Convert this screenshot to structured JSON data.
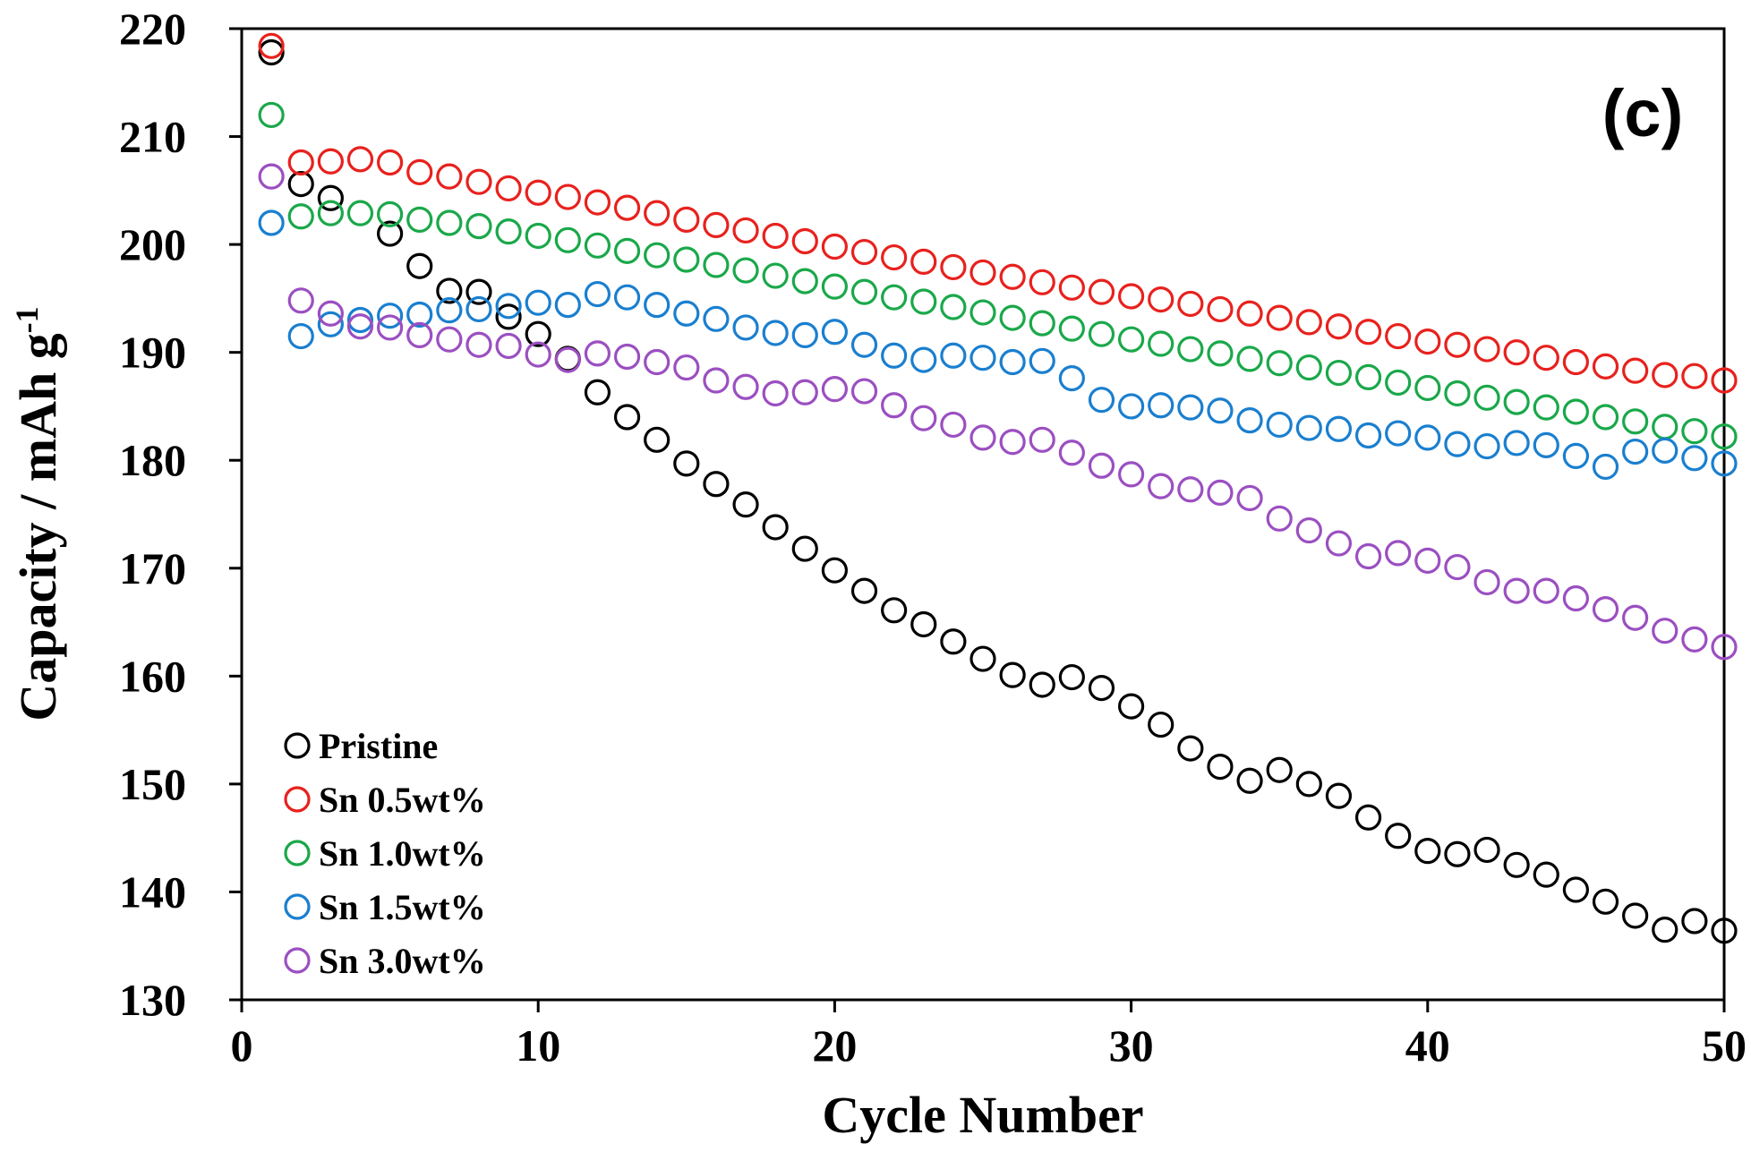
{
  "chart_data": {
    "type": "scatter",
    "panel_label": "(c)",
    "xlabel": "Cycle Number",
    "ylabel": "Capacity / mAh g",
    "ylabel_superscript": "-1",
    "xlim": [
      0,
      50
    ],
    "ylim": [
      130,
      220
    ],
    "xticks": [
      0,
      10,
      20,
      30,
      40,
      50
    ],
    "yticks": [
      130,
      140,
      150,
      160,
      170,
      180,
      190,
      200,
      210,
      220
    ],
    "grid": false,
    "legend_position": "bottom-left",
    "marker": "open-circle",
    "x": [
      1,
      2,
      3,
      4,
      5,
      6,
      7,
      8,
      9,
      10,
      11,
      12,
      13,
      14,
      15,
      16,
      17,
      18,
      19,
      20,
      21,
      22,
      23,
      24,
      25,
      26,
      27,
      28,
      29,
      30,
      31,
      32,
      33,
      34,
      35,
      36,
      37,
      38,
      39,
      40,
      41,
      42,
      43,
      44,
      45,
      46,
      47,
      48,
      49,
      50
    ],
    "series": [
      {
        "name": "Pristine",
        "color": "#000000",
        "values": [
          217.8,
          205.6,
          204.3,
          null,
          201.0,
          198.0,
          195.7,
          195.6,
          193.3,
          191.7,
          189.4,
          186.3,
          184.0,
          181.9,
          179.7,
          177.8,
          175.9,
          173.8,
          171.8,
          169.8,
          167.9,
          166.1,
          164.8,
          163.2,
          161.6,
          160.1,
          159.2,
          159.9,
          158.9,
          157.2,
          155.5,
          153.3,
          151.6,
          150.3,
          151.3,
          150.0,
          148.9,
          146.9,
          145.2,
          143.8,
          143.5,
          143.9,
          142.5,
          141.6,
          140.2,
          139.1,
          137.8,
          136.5,
          137.3,
          136.4
        ]
      },
      {
        "name": "Sn 0.5wt%",
        "color": "#e8211d",
        "values": [
          218.4,
          207.6,
          207.7,
          207.9,
          207.6,
          206.7,
          206.3,
          205.8,
          205.2,
          204.8,
          204.4,
          203.9,
          203.4,
          202.9,
          202.3,
          201.8,
          201.3,
          200.8,
          200.3,
          199.8,
          199.3,
          198.8,
          198.4,
          197.9,
          197.4,
          197.0,
          196.5,
          196.0,
          195.6,
          195.2,
          194.9,
          194.5,
          194.0,
          193.6,
          193.2,
          192.8,
          192.4,
          191.9,
          191.5,
          191.0,
          190.7,
          190.3,
          190.0,
          189.5,
          189.1,
          188.7,
          188.3,
          187.9,
          187.8,
          187.4
        ]
      },
      {
        "name": "Sn 1.0wt%",
        "color": "#1aa84a",
        "values": [
          212.0,
          202.6,
          202.9,
          202.9,
          202.8,
          202.3,
          202.0,
          201.7,
          201.2,
          200.8,
          200.4,
          199.9,
          199.4,
          199.0,
          198.6,
          198.1,
          197.6,
          197.1,
          196.6,
          196.1,
          195.6,
          195.1,
          194.7,
          194.2,
          193.7,
          193.2,
          192.7,
          192.2,
          191.7,
          191.2,
          190.8,
          190.3,
          189.9,
          189.4,
          189.0,
          188.6,
          188.1,
          187.7,
          187.2,
          186.7,
          186.2,
          185.8,
          185.4,
          184.9,
          184.5,
          184.0,
          183.6,
          183.1,
          182.7,
          182.2
        ]
      },
      {
        "name": "Sn 1.5wt%",
        "color": "#1a7fcf",
        "values": [
          202.0,
          191.5,
          192.6,
          193.0,
          193.4,
          193.5,
          193.9,
          194.0,
          194.3,
          194.6,
          194.4,
          195.4,
          195.1,
          194.4,
          193.6,
          193.1,
          192.3,
          191.8,
          191.6,
          191.9,
          190.7,
          189.7,
          189.3,
          189.7,
          189.5,
          189.1,
          189.2,
          187.6,
          185.6,
          185.0,
          185.1,
          184.9,
          184.6,
          183.7,
          183.3,
          183.0,
          182.9,
          182.3,
          182.5,
          182.1,
          181.5,
          181.3,
          181.6,
          181.4,
          180.4,
          179.4,
          180.8,
          180.9,
          180.2,
          179.7
        ]
      },
      {
        "name": "Sn 3.0wt%",
        "color": "#9b4fc1",
        "values": [
          206.3,
          194.8,
          193.6,
          192.4,
          192.3,
          191.6,
          191.2,
          190.7,
          190.6,
          189.8,
          189.3,
          189.9,
          189.6,
          189.1,
          188.6,
          187.4,
          186.8,
          186.2,
          186.3,
          186.6,
          186.4,
          185.1,
          183.9,
          183.3,
          182.1,
          181.7,
          181.9,
          180.7,
          179.5,
          178.7,
          177.6,
          177.3,
          177.0,
          176.5,
          174.6,
          173.5,
          172.3,
          171.1,
          171.4,
          170.7,
          170.1,
          168.7,
          167.9,
          167.9,
          167.2,
          166.2,
          165.4,
          164.2,
          163.4,
          162.7
        ]
      }
    ]
  }
}
